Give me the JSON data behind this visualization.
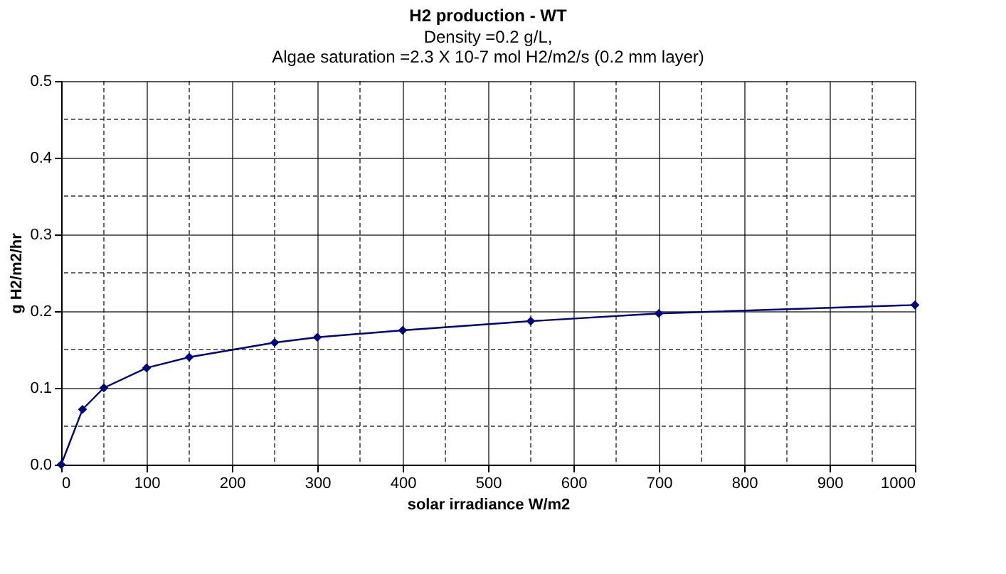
{
  "chart_data": {
    "type": "line",
    "title": "H2 production - WT",
    "subtitle": "Density =0.2 g/L,\nAlgae saturation =2.3 X 10-7 mol H2/m2/s (0.2 mm layer)",
    "xlabel": "solar irradiance W/m2",
    "ylabel": "g H2/m2/hr",
    "x": [
      0,
      25,
      50,
      100,
      150,
      250,
      300,
      400,
      550,
      700,
      1000
    ],
    "series": [
      {
        "color": "#000080",
        "values": [
          0,
          0.072,
          0.1,
          0.126,
          0.14,
          0.159,
          0.166,
          0.175,
          0.187,
          0.197,
          0.208
        ]
      }
    ],
    "xlim": [
      0,
      1000
    ],
    "xticks": [
      0,
      {
        "value": 50,
        "label": null
      },
      100,
      {
        "value": 150,
        "label": null
      },
      200,
      {
        "value": 250,
        "label": null
      },
      300,
      {
        "value": 350,
        "label": null
      },
      400,
      {
        "value": 450,
        "label": null
      },
      500,
      {
        "value": 550,
        "label": null
      },
      600,
      {
        "value": 650,
        "label": null
      },
      700,
      {
        "value": 750,
        "label": null
      },
      800,
      {
        "value": 850,
        "label": null
      },
      900,
      {
        "value": 950,
        "label": null
      },
      1000
    ],
    "ylim": [
      0,
      0.5
    ],
    "yticks": [
      {
        "value": 0,
        "label": "0.0"
      },
      {
        "value": 0.05,
        "label": null
      },
      0.1,
      {
        "value": 0.15,
        "label": null
      },
      0.2,
      {
        "value": 0.25,
        "label": null
      },
      0.3,
      {
        "value": 0.35,
        "label": null
      },
      0.4,
      {
        "value": 0.45,
        "label": null
      },
      0.5
    ],
    "grid": true,
    "marker": "diamond",
    "line_style": "solid"
  }
}
